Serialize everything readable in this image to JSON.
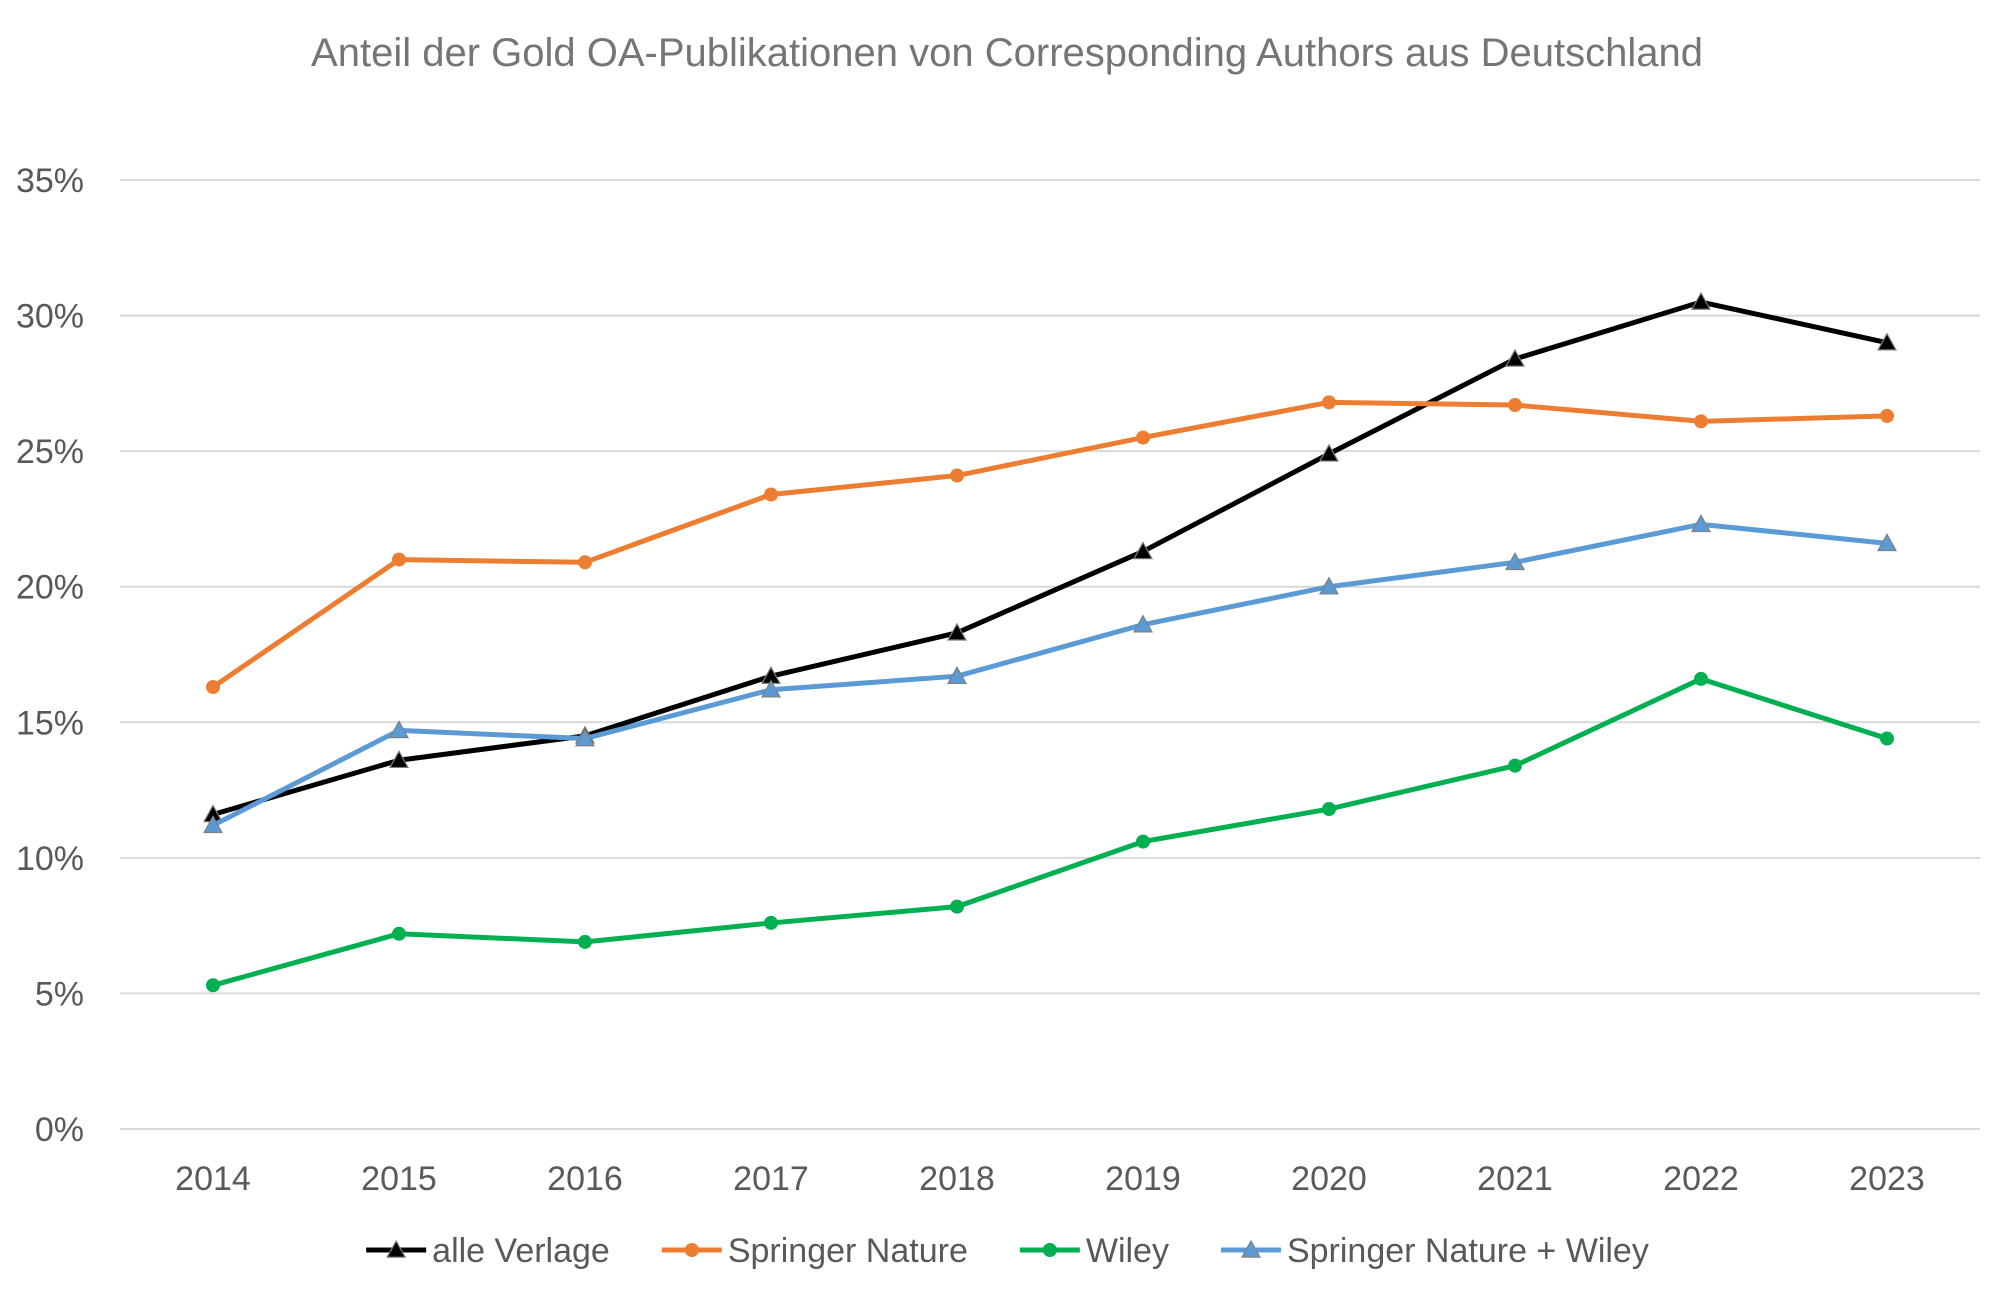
{
  "chart_data": {
    "type": "line",
    "title": "Anteil der Gold OA-Publikationen von Corresponding Authors aus Deutschland",
    "xlabel": "",
    "ylabel": "",
    "categories": [
      "2014",
      "2015",
      "2016",
      "2017",
      "2018",
      "2019",
      "2020",
      "2021",
      "2022",
      "2023"
    ],
    "ylim": [
      0,
      0.35
    ],
    "yticks": [
      {
        "value": 0,
        "label": "0%"
      },
      {
        "value": 0.05,
        "label": "5%"
      },
      {
        "value": 0.1,
        "label": "10%"
      },
      {
        "value": 0.15,
        "label": "15%"
      },
      {
        "value": 0.2,
        "label": "20%"
      },
      {
        "value": 0.25,
        "label": "25%"
      },
      {
        "value": 0.3,
        "label": "30%"
      },
      {
        "value": 0.35,
        "label": "35%"
      }
    ],
    "grid": true,
    "legend_position": "bottom",
    "series": [
      {
        "name": "alle Verlage",
        "color": "#000000",
        "marker": "triangle",
        "values": [
          0.116,
          0.136,
          0.145,
          0.167,
          0.183,
          0.213,
          0.249,
          0.284,
          0.305,
          0.29
        ]
      },
      {
        "name": "Springer Nature",
        "color": "#ED7D31",
        "marker": "circle",
        "values": [
          0.163,
          0.21,
          0.209,
          0.234,
          0.241,
          0.255,
          0.268,
          0.267,
          0.261,
          0.263
        ]
      },
      {
        "name": "Wiley",
        "color": "#00B050",
        "marker": "circle",
        "values": [
          0.053,
          0.072,
          0.069,
          0.076,
          0.082,
          0.106,
          0.118,
          0.134,
          0.166,
          0.144
        ]
      },
      {
        "name": "Springer Nature + Wiley",
        "color": "#5B9BD5",
        "marker": "triangle",
        "values": [
          0.112,
          0.147,
          0.144,
          0.162,
          0.167,
          0.186,
          0.2,
          0.209,
          0.223,
          0.216
        ]
      }
    ]
  }
}
